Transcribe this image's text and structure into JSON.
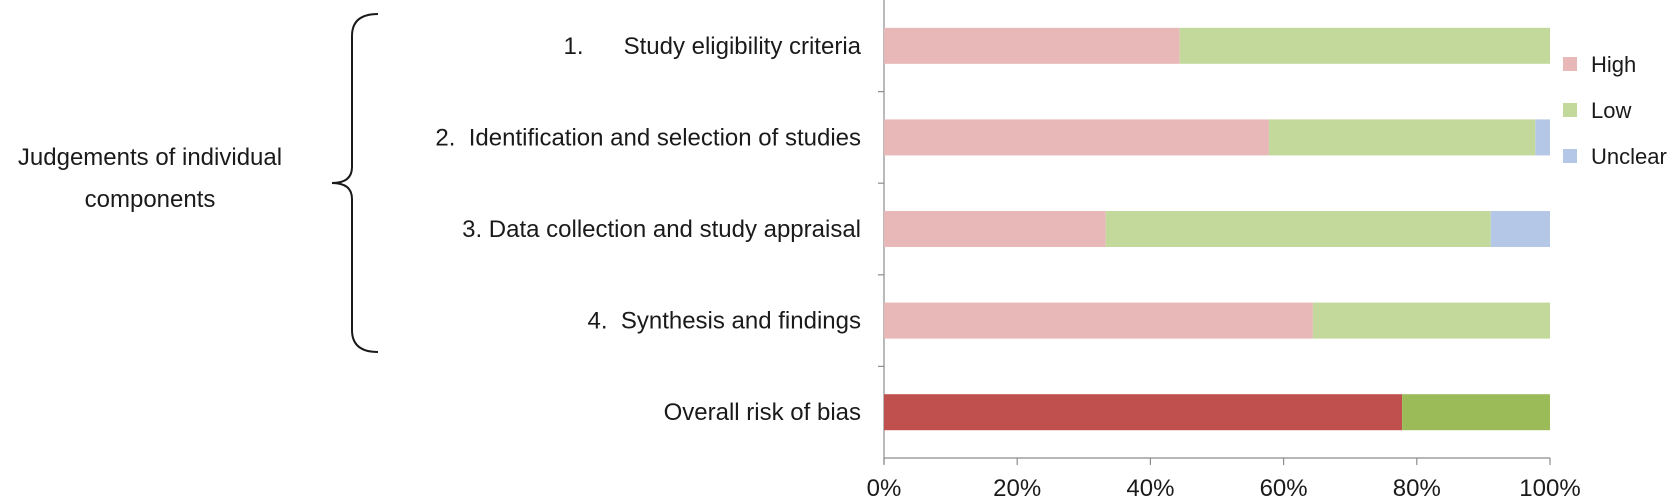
{
  "group_label": {
    "line1": "Judgements of individual",
    "line2": "components"
  },
  "chart_data": {
    "type": "bar",
    "orientation": "horizontal",
    "stacked": "100%",
    "categories": [
      "1.      Study eligibility criteria",
      "2.  Identification and selection of studies",
      "3. Data collection and study appraisal",
      "4.  Synthesis and findings",
      "Overall risk of bias"
    ],
    "series": [
      {
        "name": "High",
        "values": [
          44.4,
          57.8,
          33.3,
          64.4,
          77.8
        ]
      },
      {
        "name": "Low",
        "values": [
          55.6,
          40.0,
          57.8,
          35.6,
          22.2
        ]
      },
      {
        "name": "Unclear",
        "values": [
          0.0,
          2.2,
          8.9,
          0.0,
          0.0
        ]
      }
    ],
    "colors": {
      "High": "#e8b8b8",
      "Low": "#c3d89b",
      "Unclear": "#b4c7e7",
      "overall_high": "#c0504d",
      "overall_low": "#9bbb59"
    },
    "xlim": [
      0,
      100
    ],
    "xticks": [
      "0%",
      "20%",
      "40%",
      "60%",
      "80%",
      "100%"
    ],
    "legend_position": "right",
    "grid": false
  }
}
